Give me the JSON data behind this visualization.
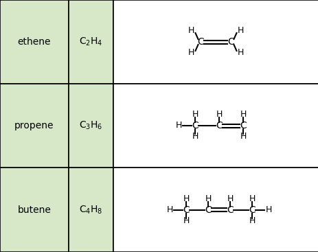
{
  "rows": [
    {
      "name": "ethene",
      "formula_sub": "2",
      "formula_hsub": "4"
    },
    {
      "name": "propene",
      "formula_sub": "3",
      "formula_hsub": "6"
    },
    {
      "name": "butene",
      "formula_sub": "4",
      "formula_hsub": "8"
    }
  ],
  "col1_bg": "#d6e8c8",
  "col2_bg": "#d6e8c8",
  "col3_bg": "#ffffff",
  "border_color": "#000000",
  "text_color": "#000000",
  "fig_width": 4.64,
  "fig_height": 3.67,
  "dpi": 100
}
